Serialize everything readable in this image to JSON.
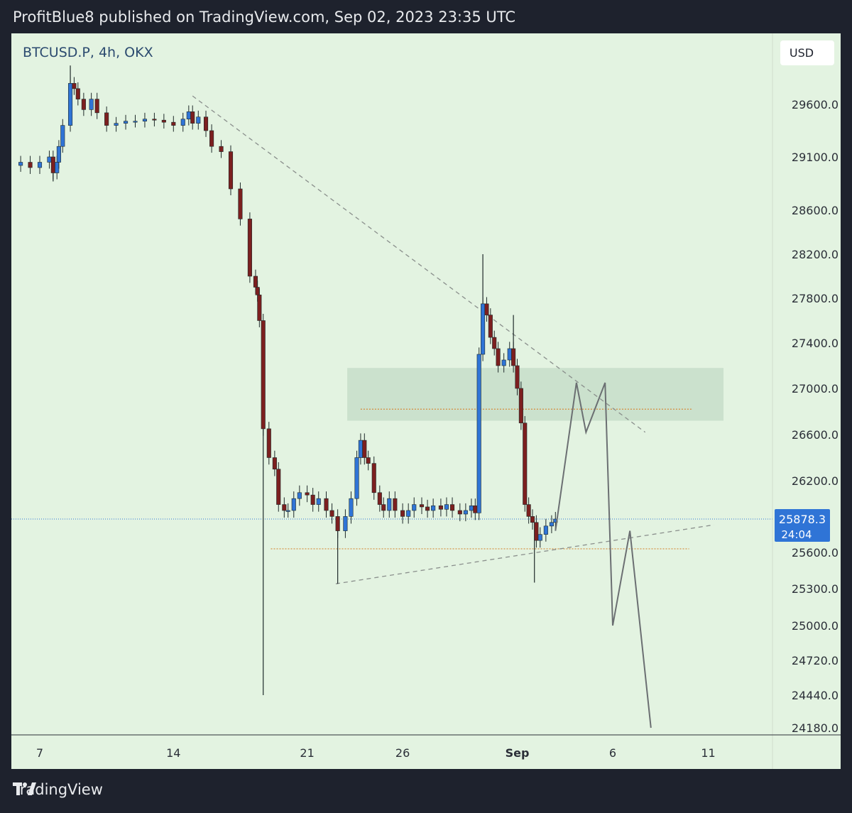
{
  "header": {
    "attribution": "ProfitBlue8 published on TradingView.com, Sep 02, 2023 23:35 UTC"
  },
  "footer": {
    "brand": "TradingView"
  },
  "colors": {
    "up": "#2f74d6",
    "down": "#7c1f1f",
    "wick": "#1f2a2a",
    "background": "#e3f3e1",
    "axis_text": "#2b2f38",
    "price_tag": "#2f74d6",
    "projection": "#6b6f72",
    "dotted_level": "#d48a3a",
    "current_line": "#2f74d6"
  },
  "chart_data": {
    "type": "candlestick",
    "symbol_label": "BTCUSD.P, 4h, OKX",
    "currency": "USD",
    "y_ticks": [
      29600.0,
      29100.0,
      28600.0,
      28200.0,
      27800.0,
      27400.0,
      27000.0,
      26600.0,
      26200.0,
      25600.0,
      25300.0,
      25000.0,
      24720.0,
      24440.0,
      24180.0
    ],
    "y_tick_labels": [
      "29600.0",
      "29100.0",
      "28600.0",
      "28200.0",
      "27800.0",
      "27400.0",
      "27000.0",
      "26600.0",
      "26200.0",
      "25600.0",
      "25300.0",
      "25000.0",
      "24720.0",
      "24440.0",
      "24180.0"
    ],
    "x_ticks": [
      {
        "label": "7",
        "day": 0
      },
      {
        "label": "14",
        "day": 7
      },
      {
        "label": "21",
        "day": 14
      },
      {
        "label": "26",
        "day": 19
      },
      {
        "label": "Sep",
        "day": 25
      },
      {
        "label": "6",
        "day": 30
      },
      {
        "label": "11",
        "day": 35
      }
    ],
    "last_price": 25878.3,
    "last_price_label": "25878.3",
    "countdown": "24:04",
    "series": [
      {
        "name": "price path (day, close)",
        "points": [
          [
            -1.5,
            29020
          ],
          [
            -1.0,
            29050
          ],
          [
            -0.5,
            29000
          ],
          [
            0.0,
            29050
          ],
          [
            0.5,
            29100
          ],
          [
            0.7,
            28950
          ],
          [
            0.9,
            29050
          ],
          [
            1.0,
            29200
          ],
          [
            1.2,
            29400
          ],
          [
            1.6,
            29800
          ],
          [
            1.8,
            29750
          ],
          [
            2.0,
            29650
          ],
          [
            2.3,
            29550
          ],
          [
            2.7,
            29650
          ],
          [
            3.0,
            29520
          ],
          [
            3.5,
            29400
          ],
          [
            4.0,
            29420
          ],
          [
            4.5,
            29440
          ],
          [
            5.0,
            29440
          ],
          [
            5.5,
            29460
          ],
          [
            6.0,
            29450
          ],
          [
            6.5,
            29430
          ],
          [
            7.0,
            29400
          ],
          [
            7.5,
            29460
          ],
          [
            7.8,
            29530
          ],
          [
            8.0,
            29420
          ],
          [
            8.3,
            29480
          ],
          [
            8.7,
            29350
          ],
          [
            9.0,
            29200
          ],
          [
            9.5,
            29150
          ],
          [
            10.0,
            28800
          ],
          [
            10.5,
            28520
          ],
          [
            11.0,
            28000
          ],
          [
            11.3,
            27900
          ],
          [
            11.4,
            27830
          ],
          [
            11.5,
            27600
          ],
          [
            11.7,
            26650
          ],
          [
            12.0,
            26400
          ],
          [
            12.3,
            26300
          ],
          [
            12.5,
            26000
          ],
          [
            12.8,
            25950
          ],
          [
            13.0,
            25950
          ],
          [
            13.3,
            26050
          ],
          [
            13.6,
            26100
          ],
          [
            14.0,
            26080
          ],
          [
            14.3,
            26000
          ],
          [
            14.6,
            26050
          ],
          [
            15.0,
            25950
          ],
          [
            15.3,
            25900
          ],
          [
            15.6,
            25780
          ],
          [
            16.0,
            25900
          ],
          [
            16.3,
            26050
          ],
          [
            16.6,
            26400
          ],
          [
            16.8,
            26550
          ],
          [
            17.0,
            26400
          ],
          [
            17.2,
            26350
          ],
          [
            17.5,
            26100
          ],
          [
            17.8,
            26000
          ],
          [
            18.0,
            25950
          ],
          [
            18.3,
            26050
          ],
          [
            18.6,
            25950
          ],
          [
            19.0,
            25900
          ],
          [
            19.3,
            25950
          ],
          [
            19.6,
            26000
          ],
          [
            20.0,
            25980
          ],
          [
            20.3,
            25950
          ],
          [
            20.6,
            25990
          ],
          [
            21.0,
            25960
          ],
          [
            21.3,
            26000
          ],
          [
            21.6,
            25950
          ],
          [
            22.0,
            25920
          ],
          [
            22.3,
            25950
          ],
          [
            22.6,
            25990
          ],
          [
            22.8,
            25930
          ],
          [
            23.0,
            27300
          ],
          [
            23.2,
            27750
          ],
          [
            23.4,
            27650
          ],
          [
            23.6,
            27450
          ],
          [
            23.8,
            27350
          ],
          [
            24.0,
            27200
          ],
          [
            24.3,
            27250
          ],
          [
            24.6,
            27350
          ],
          [
            24.8,
            27200
          ],
          [
            25.0,
            27000
          ],
          [
            25.2,
            26700
          ],
          [
            25.4,
            26000
          ],
          [
            25.6,
            25900
          ],
          [
            25.8,
            25850
          ],
          [
            26.0,
            25700
          ],
          [
            26.2,
            25750
          ],
          [
            26.5,
            25820
          ],
          [
            26.8,
            25850
          ],
          [
            27.0,
            25878
          ]
        ]
      },
      {
        "name": "projected path (day, price)",
        "points": [
          [
            27.0,
            25780
          ],
          [
            28.1,
            27050
          ],
          [
            28.6,
            26620
          ],
          [
            29.6,
            27050
          ],
          [
            30.0,
            25000
          ],
          [
            30.9,
            25780
          ],
          [
            32.0,
            24180
          ]
        ]
      }
    ],
    "wicks": [
      {
        "day": 11.7,
        "low": 24440,
        "high": 26650
      },
      {
        "day": 15.6,
        "low": 25340,
        "high": 25780
      },
      {
        "day": 23.2,
        "low": 27750,
        "high": 28200
      },
      {
        "day": 24.8,
        "low": 27200,
        "high": 27650
      },
      {
        "day": 25.9,
        "low": 25350,
        "high": 25850
      },
      {
        "day": 1.6,
        "low": 29800,
        "high": 29970
      },
      {
        "day": 0.7,
        "low": 28870,
        "high": 28950
      }
    ],
    "trendlines": [
      {
        "name": "descending resistance",
        "from": [
          8.0,
          29680
        ],
        "to": [
          31.7,
          26620
        ]
      },
      {
        "name": "ascending support",
        "from": [
          15.5,
          25340
        ],
        "to": [
          35.3,
          25830
        ]
      }
    ],
    "levels": [
      {
        "name": "upper dotted level",
        "price": 26820,
        "from_day": 16.8,
        "to_day": 34.2
      },
      {
        "name": "lower dotted level",
        "price": 25630,
        "from_day": 12.1,
        "to_day": 34.0
      }
    ],
    "zones": [
      {
        "name": "supply zone",
        "price_low": 26720,
        "price_high": 27180,
        "from_day": 16.1,
        "to_day": 35.8
      }
    ]
  }
}
